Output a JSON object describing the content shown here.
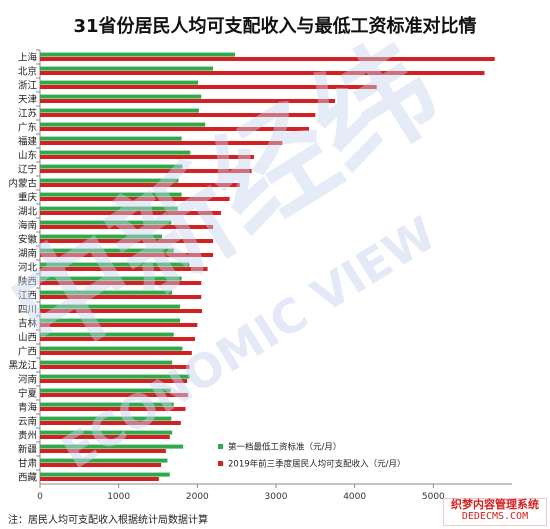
{
  "chart_data": {
    "type": "bar",
    "orientation": "horizontal",
    "title": "31省份居民人均可支配收入与最低工资标准对比情",
    "categories": [
      "上海",
      "北京",
      "浙江",
      "天津",
      "江苏",
      "广东",
      "福建",
      "山东",
      "辽宁",
      "内蒙古",
      "重庆",
      "湖北",
      "海南",
      "安徽",
      "湖南",
      "河北",
      "陕西",
      "江西",
      "四川",
      "吉林",
      "山西",
      "广西",
      "黑龙江",
      "河南",
      "宁夏",
      "青海",
      "云南",
      "贵州",
      "新疆",
      "甘肃",
      "西藏"
    ],
    "series": [
      {
        "name": "第一档最低工资标准（元/月）",
        "color": "#2eaa4a",
        "values": [
          2480,
          2200,
          2010,
          2050,
          2020,
          2100,
          1800,
          1910,
          1810,
          1760,
          1800,
          1750,
          1670,
          1550,
          1700,
          1900,
          1800,
          1680,
          1780,
          1780,
          1700,
          1810,
          1680,
          1900,
          1660,
          1700,
          1670,
          1680,
          1820,
          1620,
          1650
        ]
      },
      {
        "name": "2019年前三季度居民人均可支配收入（元/月）",
        "color": "#d42020",
        "values": [
          5780,
          5650,
          4280,
          3750,
          3500,
          3420,
          3080,
          2720,
          2690,
          2540,
          2410,
          2300,
          2200,
          2200,
          2200,
          2130,
          2050,
          2050,
          2060,
          2000,
          1970,
          1930,
          1900,
          1870,
          1880,
          1850,
          1790,
          1650,
          1600,
          1540,
          1510
        ]
      }
    ],
    "xlim": [
      0,
      6000
    ],
    "xticks": [
      0,
      1000,
      2000,
      3000,
      4000,
      5000
    ],
    "xlabel": "",
    "ylabel": "",
    "legend_position": "bottom-right",
    "grid": false
  },
  "footnote": "注：居民人均可支配收入根据统计局数据计算",
  "watermark": {
    "text_cn": "中新经纬",
    "text_en": "ECONOMIC VIEW",
    "badge_line1": "织梦内容管理系统",
    "badge_line2": "DEDECMS.COM"
  }
}
